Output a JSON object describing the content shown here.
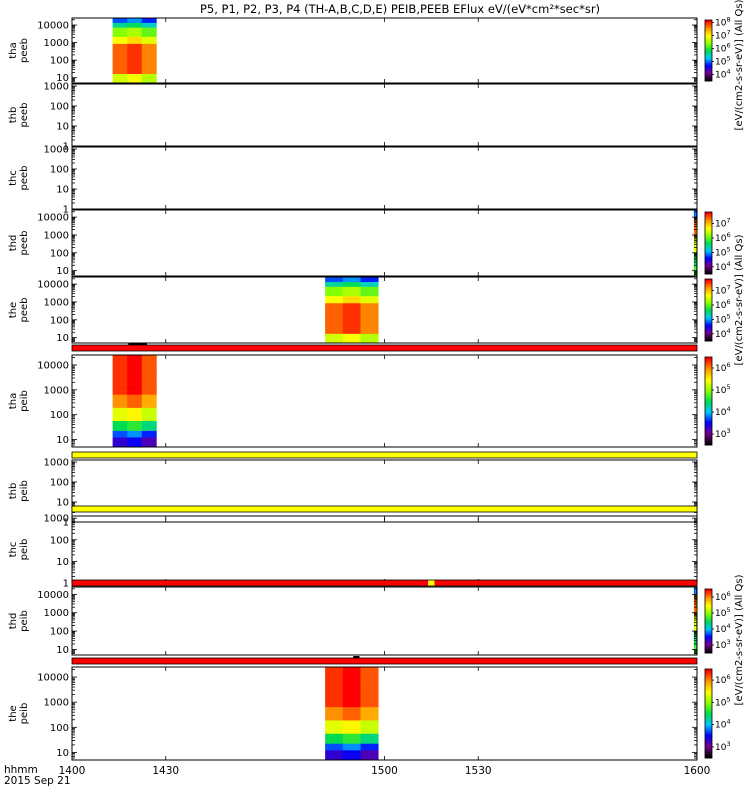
{
  "chart_data": {
    "type": "heatmap",
    "title": "P5, P1, P2, P3, P4 (TH-A,B,C,D,E) PEIB,PEEB EFlux eV/(eV*cm²*sec*sr)",
    "xaxis": {
      "label_line1": "hhmm",
      "label_line2": "2015 Sep 21",
      "range": [
        1400,
        1600
      ],
      "ticks": [
        {
          "value": 1400,
          "label": "1400"
        },
        {
          "value": 1430,
          "label": "1430"
        },
        {
          "value": 1500,
          "label": "1500"
        },
        {
          "value": 1530,
          "label": "1530"
        },
        {
          "value": 1600,
          "label": "1600"
        }
      ]
    },
    "colorbar_label_top": "[eV/(cm2-s-sr-eV)] (All Qs)",
    "colorbar_label_mid": "[eV/(cm2-s-sr-eV)] (All Qs)",
    "colorbar_label_bottom": "[eV/(cm2-s-sr-eV)] (All Qs)",
    "panels": [
      {
        "name": "tha-peeb",
        "ylabel1": "tha",
        "ylabel2": "peeb",
        "yticks": [
          "10000",
          "1000",
          "100",
          "10"
        ],
        "ylog": [
          0.7,
          4.4
        ],
        "flag": null,
        "blocks": [
          {
            "t0": 1413,
            "t1": 1427,
            "logE0": 0.7,
            "logE1": 4.4,
            "profile": "peeb"
          }
        ],
        "colorbar": {
          "exp": [
            8,
            7,
            6,
            5,
            4
          ],
          "range": [
            3.5,
            8.2
          ]
        }
      },
      {
        "name": "thb-peeb",
        "ylabel1": "thb",
        "ylabel2": "peeb",
        "yticks": [
          "1000",
          "100",
          "10",
          "1"
        ],
        "ylog": [
          0,
          3.1
        ],
        "flag": null,
        "blocks": [],
        "colorbar": null
      },
      {
        "name": "thc-peeb",
        "ylabel1": "thc",
        "ylabel2": "peeb",
        "yticks": [
          "1000",
          "100",
          "10",
          "1"
        ],
        "ylog": [
          0,
          3.1
        ],
        "flag": null,
        "blocks": [],
        "colorbar": null
      },
      {
        "name": "thd-peeb",
        "ylabel1": "thd",
        "ylabel2": "peeb",
        "yticks": [
          "10000",
          "1000",
          "100",
          "10"
        ],
        "ylog": [
          0.7,
          4.4
        ],
        "flag": null,
        "blocks": [
          {
            "t0": 1599,
            "t1": 1600,
            "logE0": 0.7,
            "logE1": 4.4,
            "profile": "edge"
          }
        ],
        "colorbar": {
          "exp": [
            7,
            6,
            5,
            4
          ],
          "range": [
            3.5,
            7.8
          ]
        }
      },
      {
        "name": "the-peeb",
        "ylabel1": "the",
        "ylabel2": "peeb",
        "yticks": [
          "10000",
          "1000",
          "100",
          "10"
        ],
        "ylog": [
          0.7,
          4.4
        ],
        "flag": null,
        "blocks": [
          {
            "t0": 1481,
            "t1": 1498,
            "logE0": 0.7,
            "logE1": 4.4,
            "profile": "peeb"
          }
        ],
        "colorbar": {
          "exp": [
            7,
            6,
            5,
            4
          ],
          "range": [
            3.5,
            7.8
          ]
        }
      },
      {
        "name": "tha-peib",
        "ylabel1": "tha",
        "ylabel2": "peib",
        "yticks": [
          "10000",
          "1000",
          "100",
          "10"
        ],
        "ylog": [
          0.7,
          4.4
        ],
        "flag": {
          "segments": [
            {
              "t0": 1400,
              "t1": 1600,
              "color": "#ff0000"
            }
          ],
          "marker": {
            "t0": 1418,
            "t1": 1424
          }
        },
        "blocks": [
          {
            "t0": 1413,
            "t1": 1427,
            "logE0": 0.7,
            "logE1": 4.4,
            "profile": "peib"
          }
        ],
        "colorbar": {
          "exp": [
            6,
            5,
            4,
            3
          ],
          "range": [
            2.5,
            6.5
          ]
        }
      },
      {
        "name": "thb-peib",
        "ylabel1": "thb",
        "ylabel2": "peib",
        "yticks": [
          "1000",
          "100",
          "10",
          "1"
        ],
        "ylog": [
          0,
          3.1
        ],
        "flag": {
          "segments": [
            {
              "t0": 1400,
              "t1": 1600,
              "color": "#ffff00"
            }
          ],
          "marker": null
        },
        "blocks": [],
        "colorbar": null
      },
      {
        "name": "thc-peib",
        "ylabel1": "thc",
        "ylabel2": "peib",
        "yticks": [
          "1000",
          "100",
          "10",
          "1"
        ],
        "ylog": [
          0,
          3.1
        ],
        "flag": {
          "segments": [
            {
              "t0": 1400,
              "t1": 1600,
              "color": "#ffff00"
            }
          ],
          "marker": null
        },
        "blocks": [],
        "colorbar": null
      },
      {
        "name": "thd-peib",
        "ylabel1": "thd",
        "ylabel2": "peib",
        "yticks": [
          "10000",
          "1000",
          "100",
          "10"
        ],
        "ylog": [
          0.7,
          4.4
        ],
        "flag": {
          "segments": [
            {
              "t0": 1400,
              "t1": 1514,
              "color": "#ff0000"
            },
            {
              "t0": 1514,
              "t1": 1516,
              "color": "#ffff00"
            },
            {
              "t0": 1516,
              "t1": 1600,
              "color": "#ff0000"
            }
          ],
          "marker": null
        },
        "blocks": [
          {
            "t0": 1599,
            "t1": 1600,
            "logE0": 0.7,
            "logE1": 4.4,
            "profile": "edge"
          }
        ],
        "colorbar": {
          "exp": [
            6,
            5,
            4,
            3
          ],
          "range": [
            2.5,
            6.5
          ]
        }
      },
      {
        "name": "the-peib",
        "ylabel1": "the",
        "ylabel2": "peib",
        "yticks": [
          "10000",
          "1000",
          "100",
          "10"
        ],
        "ylog": [
          0.7,
          4.4
        ],
        "flag": {
          "segments": [
            {
              "t0": 1400,
              "t1": 1600,
              "color": "#ff0000"
            }
          ],
          "marker": {
            "t0": 1490,
            "t1": 1492
          }
        },
        "blocks": [
          {
            "t0": 1481,
            "t1": 1498,
            "logE0": 0.7,
            "logE1": 4.4,
            "profile": "peib"
          }
        ],
        "colorbar": {
          "exp": [
            6,
            5,
            4,
            3
          ],
          "range": [
            2.5,
            6.5
          ]
        }
      }
    ]
  }
}
